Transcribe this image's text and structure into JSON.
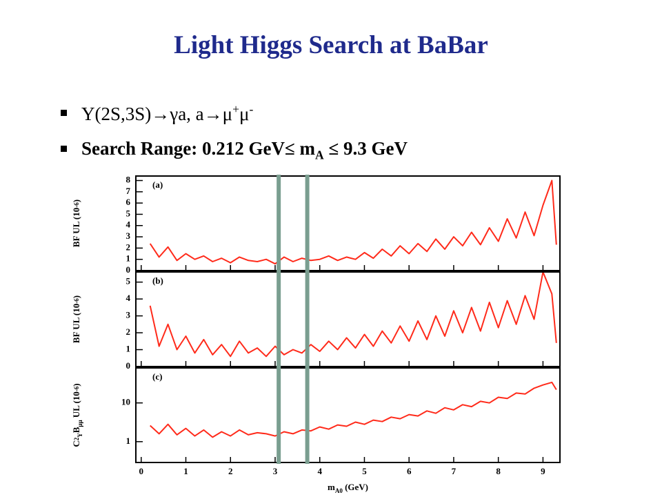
{
  "title": "Light Higgs Search at BaBar",
  "bullets": [
    [
      {
        "text": "Υ(2S,3S)→γa, a→μ"
      },
      {
        "text": "+",
        "shift": "sup"
      },
      {
        "text": "μ"
      },
      {
        "text": "-",
        "shift": "sup"
      }
    ],
    [
      {
        "text": "Search Range: 0.212 GeV≤ m"
      },
      {
        "text": "A",
        "shift": "sub"
      },
      {
        "text": " ≤ 9.3 GeV"
      }
    ]
  ],
  "chart_data": [
    {
      "type": "line",
      "panel_label": "(a)",
      "ylabel": [
        {
          "text": "BF UL (10"
        },
        {
          "text": "-6",
          "shift": "sup"
        },
        {
          "text": ")"
        }
      ],
      "x": [
        0.2,
        0.4,
        0.6,
        0.8,
        1.0,
        1.2,
        1.4,
        1.6,
        1.8,
        2.0,
        2.2,
        2.4,
        2.6,
        2.8,
        3.0,
        3.2,
        3.4,
        3.6,
        3.8,
        4.0,
        4.2,
        4.4,
        4.6,
        4.8,
        5.0,
        5.2,
        5.4,
        5.6,
        5.8,
        6.0,
        6.2,
        6.4,
        6.6,
        6.8,
        7.0,
        7.2,
        7.4,
        7.6,
        7.8,
        8.0,
        8.2,
        8.4,
        8.6,
        8.8,
        9.0,
        9.2,
        9.3
      ],
      "series": [
        {
          "color": "#ff2a1a",
          "values": [
            2.4,
            1.2,
            2.1,
            0.9,
            1.5,
            1.0,
            1.3,
            0.8,
            1.1,
            0.7,
            1.2,
            0.9,
            0.8,
            1.0,
            0.6,
            1.2,
            0.8,
            1.1,
            0.9,
            1.0,
            1.3,
            0.9,
            1.2,
            1.0,
            1.6,
            1.1,
            1.9,
            1.3,
            2.2,
            1.5,
            2.4,
            1.7,
            2.8,
            1.9,
            3.0,
            2.2,
            3.4,
            2.3,
            3.8,
            2.6,
            4.6,
            2.9,
            5.2,
            3.1,
            5.8,
            8.0,
            2.3
          ]
        }
      ],
      "xlim": [
        -0.12,
        9.38
      ],
      "ylim": [
        0,
        8.4
      ],
      "yticks": [
        0,
        1,
        2,
        3,
        4,
        5,
        6,
        7,
        8
      ],
      "vlines": [
        3.08,
        3.72
      ],
      "vline_color": "#7a9e90"
    },
    {
      "type": "line",
      "panel_label": "(b)",
      "ylabel": [
        {
          "text": "BF UL (10"
        },
        {
          "text": "-6",
          "shift": "sup"
        },
        {
          "text": ")"
        }
      ],
      "x": [
        0.2,
        0.4,
        0.6,
        0.8,
        1.0,
        1.2,
        1.4,
        1.6,
        1.8,
        2.0,
        2.2,
        2.4,
        2.6,
        2.8,
        3.0,
        3.2,
        3.4,
        3.6,
        3.8,
        4.0,
        4.2,
        4.4,
        4.6,
        4.8,
        5.0,
        5.2,
        5.4,
        5.6,
        5.8,
        6.0,
        6.2,
        6.4,
        6.6,
        6.8,
        7.0,
        7.2,
        7.4,
        7.6,
        7.8,
        8.0,
        8.2,
        8.4,
        8.6,
        8.8,
        9.0,
        9.2,
        9.3
      ],
      "series": [
        {
          "color": "#ff2a1a",
          "values": [
            3.6,
            1.2,
            2.5,
            1.0,
            1.8,
            0.8,
            1.6,
            0.7,
            1.3,
            0.6,
            1.5,
            0.8,
            1.1,
            0.6,
            1.2,
            0.7,
            1.0,
            0.8,
            1.3,
            0.9,
            1.5,
            1.0,
            1.7,
            1.1,
            1.9,
            1.2,
            2.1,
            1.4,
            2.4,
            1.5,
            2.7,
            1.6,
            3.0,
            1.8,
            3.3,
            2.0,
            3.5,
            2.1,
            3.8,
            2.3,
            3.9,
            2.5,
            4.2,
            2.8,
            5.6,
            4.3,
            1.4
          ]
        }
      ],
      "xlim": [
        -0.12,
        9.38
      ],
      "ylim": [
        0,
        5.6
      ],
      "yticks": [
        0,
        1,
        2,
        3,
        4,
        5
      ],
      "vlines": [
        3.08,
        3.72
      ],
      "vline_color": "#7a9e90"
    },
    {
      "type": "line",
      "panel_label": "(c)",
      "ylabel": [
        {
          "text": "C"
        },
        {
          "text": "2",
          "shift": "sup"
        },
        {
          "text": "Υ",
          "shift": "sub"
        },
        {
          "text": "B"
        },
        {
          "text": "μμ",
          "shift": "sub"
        },
        {
          "text": " UL (10"
        },
        {
          "text": "-6",
          "shift": "sup"
        },
        {
          "text": ")"
        }
      ],
      "xlabel": [
        {
          "text": "m"
        },
        {
          "text": "A0",
          "shift": "sub"
        },
        {
          "text": " (GeV)"
        }
      ],
      "x": [
        0.2,
        0.4,
        0.6,
        0.8,
        1.0,
        1.2,
        1.4,
        1.6,
        1.8,
        2.0,
        2.2,
        2.4,
        2.6,
        2.8,
        3.0,
        3.2,
        3.4,
        3.6,
        3.8,
        4.0,
        4.2,
        4.4,
        4.6,
        4.8,
        5.0,
        5.2,
        5.4,
        5.6,
        5.8,
        6.0,
        6.2,
        6.4,
        6.6,
        6.8,
        7.0,
        7.2,
        7.4,
        7.6,
        7.8,
        8.0,
        8.2,
        8.4,
        8.6,
        8.8,
        9.0,
        9.2,
        9.3
      ],
      "series": [
        {
          "color": "#ff2a1a",
          "values": [
            2.6,
            1.6,
            2.8,
            1.5,
            2.2,
            1.4,
            2.0,
            1.3,
            1.8,
            1.4,
            2.0,
            1.5,
            1.7,
            1.6,
            1.4,
            1.8,
            1.6,
            2.0,
            1.9,
            2.4,
            2.1,
            2.7,
            2.5,
            3.2,
            2.8,
            3.6,
            3.3,
            4.3,
            3.9,
            5.0,
            4.6,
            6.2,
            5.4,
            7.5,
            6.6,
            9.0,
            8.0,
            11,
            10,
            14,
            13,
            18,
            17,
            24,
            29,
            34,
            22
          ]
        }
      ],
      "xlim": [
        -0.12,
        9.38
      ],
      "ylim": [
        0.29,
        80
      ],
      "log_y": true,
      "yticks": [
        1,
        10
      ],
      "xticks": [
        0,
        1,
        2,
        3,
        4,
        5,
        6,
        7,
        8,
        9
      ],
      "vlines": [
        3.08,
        3.72
      ],
      "vline_color": "#7a9e90"
    }
  ]
}
